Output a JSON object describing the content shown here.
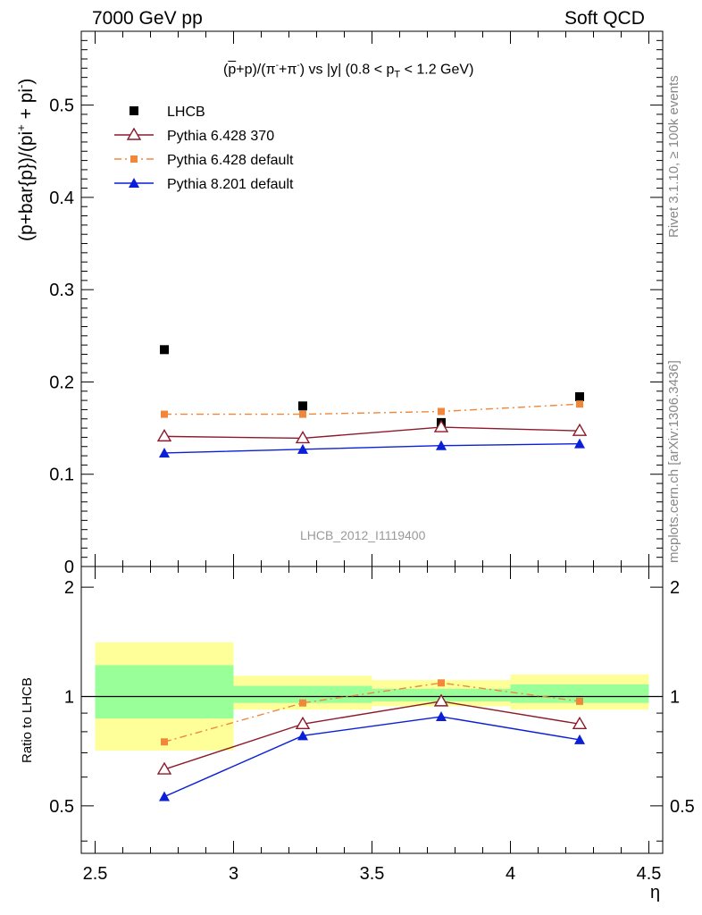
{
  "header": {
    "left": "7000 GeV pp",
    "right": "Soft QCD"
  },
  "side_labels": {
    "rivet": "Rivet 3.1.10, ≥ 100k events",
    "mcplots": "mcplots.cern.ch [arXiv:1306.3436]"
  },
  "watermark": "LHCB_2012_I1119400",
  "chart_data": [
    {
      "type": "scatter",
      "title": "(p̅+p)/(π⁻+π⁻) vs |y| (0.8 < p_T < 1.2 GeV)",
      "title_parts": {
        "a": "(",
        "pbar": "p",
        "b": "+p)/(π",
        "c": "+π",
        "d": ") vs |y| (0.8 < p",
        "sub": "T",
        "e": " < 1.2 GeV)",
        "minus": "-"
      },
      "ylabel": "(p+bar{p})/(pi⁺ + pi⁻)",
      "ylabel_parts": {
        "main": "(p+bar{p})/(pi",
        "sup1": "+",
        "mid": " + pi",
        "sup2": "-",
        "end": ")"
      },
      "xlim": [
        2.45,
        4.55
      ],
      "ylim": [
        0,
        0.58
      ],
      "yticks": [
        0,
        0.1,
        0.2,
        0.3,
        0.4,
        0.5
      ],
      "ytick_labels": [
        "0",
        "0.1",
        "0.2",
        "0.3",
        "0.4",
        "0.5"
      ],
      "legend_position": "top-left",
      "series": [
        {
          "name": "LHCB",
          "color": "#000000",
          "marker": "square",
          "line": "none",
          "x": [
            2.75,
            3.25,
            3.75,
            4.25
          ],
          "y": [
            0.235,
            0.174,
            0.156,
            0.184
          ]
        },
        {
          "name": "Pythia 6.428 370",
          "color": "#8b1a2b",
          "marker": "open-triangle",
          "line": "solid",
          "x": [
            2.75,
            3.25,
            3.75,
            4.25
          ],
          "y": [
            0.141,
            0.139,
            0.151,
            0.147
          ]
        },
        {
          "name": "Pythia 6.428 default",
          "color": "#f0873a",
          "marker": "small-square",
          "line": "dashdot",
          "x": [
            2.75,
            3.25,
            3.75,
            4.25
          ],
          "y": [
            0.165,
            0.165,
            0.168,
            0.176
          ]
        },
        {
          "name": "Pythia 8.201 default",
          "color": "#0a1fd6",
          "marker": "filled-triangle",
          "line": "solid",
          "x": [
            2.75,
            3.25,
            3.75,
            4.25
          ],
          "y": [
            0.123,
            0.127,
            0.131,
            0.133
          ]
        }
      ]
    },
    {
      "type": "scatter",
      "ylabel": "Ratio to LHCB",
      "xlabel": "η",
      "xlim": [
        2.45,
        4.55
      ],
      "ylim": [
        0.37,
        2.28
      ],
      "xticks": [
        2.5,
        3,
        3.5,
        4,
        4.5
      ],
      "xtick_labels": [
        "2.5",
        "3",
        "3.5",
        "4",
        "4.5"
      ],
      "yticks": [
        0.5,
        1,
        2
      ],
      "ytick_labels": [
        "0.5",
        "1",
        "2"
      ],
      "bands": [
        {
          "xmin": 2.5,
          "xmax": 3.0,
          "green": [
            0.87,
            1.22
          ],
          "yellow": [
            0.71,
            1.41
          ]
        },
        {
          "xmin": 3.0,
          "xmax": 3.5,
          "green": [
            0.96,
            1.07
          ],
          "yellow": [
            0.92,
            1.14
          ]
        },
        {
          "xmin": 3.5,
          "xmax": 4.0,
          "green": [
            0.97,
            1.05
          ],
          "yellow": [
            0.94,
            1.11
          ]
        },
        {
          "xmin": 4.0,
          "xmax": 4.5,
          "green": [
            0.96,
            1.08
          ],
          "yellow": [
            0.92,
            1.15
          ]
        }
      ],
      "series": [
        {
          "name": "Pythia 6.428 370",
          "color": "#8b1a2b",
          "marker": "open-triangle",
          "line": "solid",
          "x": [
            2.75,
            3.25,
            3.75,
            4.25
          ],
          "y": [
            0.63,
            0.84,
            0.97,
            0.84
          ]
        },
        {
          "name": "Pythia 6.428 default",
          "color": "#f0873a",
          "marker": "small-square",
          "line": "dashdot",
          "x": [
            2.75,
            3.25,
            3.75,
            4.25
          ],
          "y": [
            0.75,
            0.96,
            1.09,
            0.97
          ]
        },
        {
          "name": "Pythia 8.201 default",
          "color": "#0a1fd6",
          "marker": "filled-triangle",
          "line": "solid",
          "x": [
            2.75,
            3.25,
            3.75,
            4.25
          ],
          "y": [
            0.53,
            0.78,
            0.88,
            0.76
          ]
        }
      ]
    }
  ]
}
